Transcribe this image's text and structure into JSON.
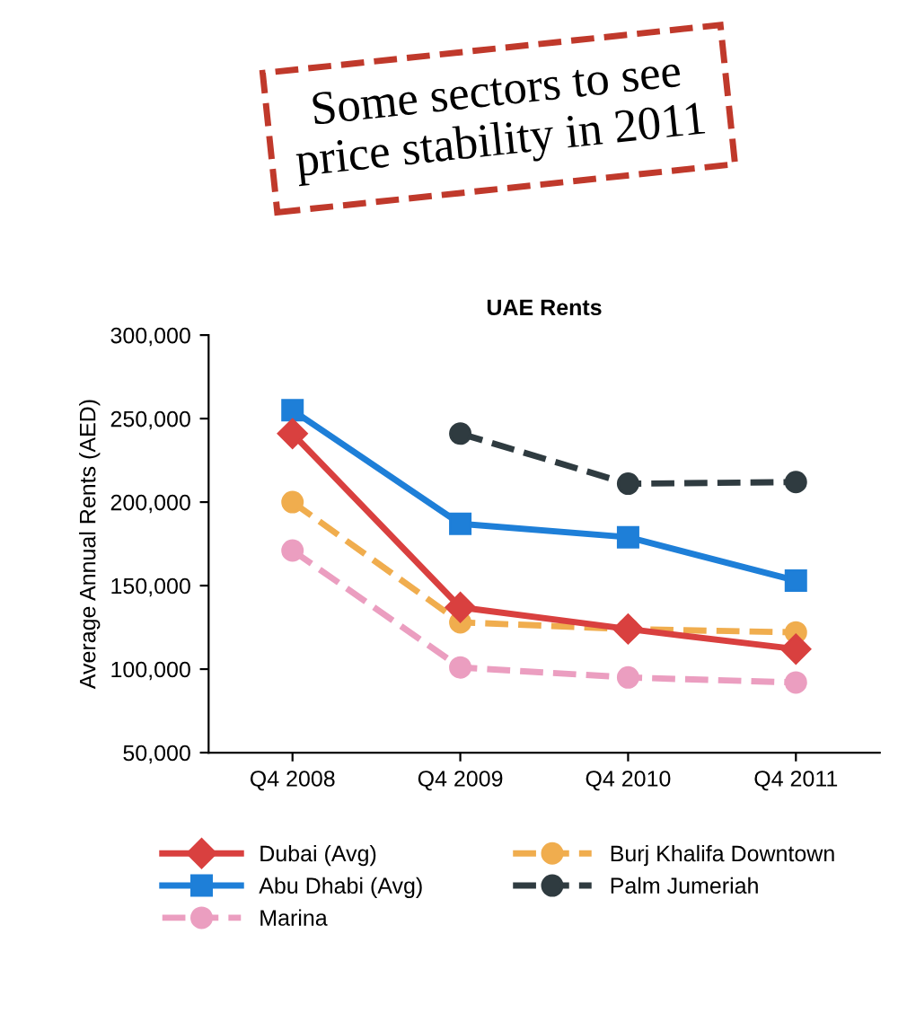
{
  "chart_data": {
    "type": "line",
    "title": "Some sectors to see\nprice stability in 2011",
    "subtitle": "UAE Rents",
    "ylabel": "Average Annual Rents (AED)",
    "categories": [
      "Q4 2008",
      "Q4 2009",
      "Q4 2010",
      "Q4 2011"
    ],
    "series": [
      {
        "name": "Dubai (Avg)",
        "color": "#d9403f",
        "marker": "diamond",
        "line_style": "solid",
        "values": [
          241000,
          137000,
          124000,
          112000
        ]
      },
      {
        "name": "Abu Dhabi (Avg)",
        "color": "#1e7fd8",
        "marker": "square",
        "line_style": "solid",
        "values": [
          255000,
          187000,
          179000,
          153000
        ]
      },
      {
        "name": "Marina",
        "color": "#eb9ec0",
        "marker": "circle",
        "line_style": "dashed",
        "values": [
          171000,
          101000,
          95000,
          92000
        ]
      },
      {
        "name": "Burj Khalifa Downtown",
        "color": "#f0ad4e",
        "marker": "circle",
        "line_style": "dashed",
        "values": [
          200000,
          128000,
          124000,
          122000
        ]
      },
      {
        "name": "Palm Jumeriah",
        "color": "#2f3b40",
        "marker": "circle",
        "line_style": "dashed",
        "values": [
          null,
          241000,
          211000,
          212000
        ]
      }
    ],
    "ylim": [
      50000,
      300000
    ],
    "yticks": [
      {
        "value": 50000,
        "label": "50,000"
      },
      {
        "value": 100000,
        "label": "100,000"
      },
      {
        "value": 150000,
        "label": "150,000"
      },
      {
        "value": 200000,
        "label": "200,000"
      },
      {
        "value": 250000,
        "label": "250,000"
      },
      {
        "value": 300000,
        "label": "300,000"
      }
    ],
    "grid": false,
    "legend": "bottom"
  }
}
